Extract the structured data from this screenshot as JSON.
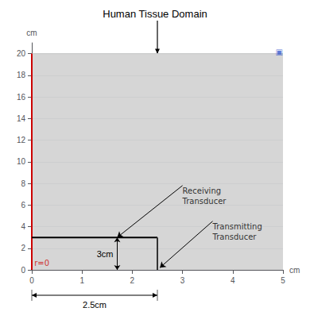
{
  "chart_data": {
    "type": "line",
    "title": "Human Tissue Domain",
    "title_arrow": {
      "x": 2.5,
      "y": 20.0
    },
    "x_label": "cm",
    "y_label": "cm",
    "xlim": [
      0,
      5
    ],
    "ylim": [
      0,
      21
    ],
    "xticks": [
      0,
      1,
      2,
      3,
      4,
      5
    ],
    "yticks": [
      0,
      2,
      4,
      6,
      8,
      10,
      12,
      14,
      16,
      18,
      20
    ],
    "grid": true,
    "series": [
      {
        "type": "area",
        "color": "#c8c8c8",
        "x": [
          0,
          5
        ],
        "values": [
          20,
          20
        ]
      },
      {
        "type": "line",
        "color": "#cc0000",
        "x": [
          0,
          0
        ],
        "values": [
          0,
          20
        ]
      },
      {
        "type": "line",
        "color": "#000000",
        "x": [
          0,
          2.5
        ],
        "values": [
          3.0,
          3.0
        ]
      },
      {
        "type": "line",
        "color": "#333333",
        "x": [
          2.5,
          2.5
        ],
        "values": [
          0,
          3.0
        ]
      }
    ],
    "annotations": [
      {
        "text": "Receiving\nTransducer",
        "x": 1.7,
        "y": 3.0,
        "text_x": 3.0,
        "text_y": 7.8
      },
      {
        "text": "Transmitting\nTransducer",
        "x": 2.55,
        "y": 0.2,
        "text_x": 3.6,
        "text_y": 4.5
      },
      {
        "text": "r=0",
        "x": 0.05,
        "y": 0.18,
        "color": "#cc0000"
      },
      {
        "text": "▣",
        "x": 4.85,
        "y": 19.65,
        "color": "#3355cc"
      }
    ],
    "dimensions": [
      {
        "text": "3cm",
        "axis": "y",
        "from": 0,
        "to": 3.0,
        "at": 1.7
      },
      {
        "text": "2.5cm",
        "axis": "x",
        "from": 0,
        "to": 2.5
      }
    ]
  }
}
